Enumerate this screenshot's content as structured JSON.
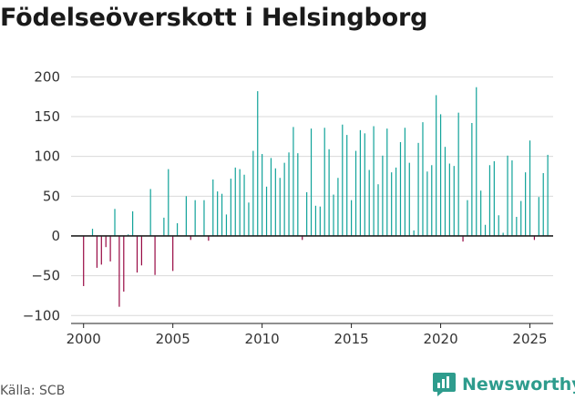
{
  "title": "Födelseöverskott i Helsingborg",
  "source": "Källa: SCB",
  "brand": {
    "name": "Newsworthy",
    "icon": "bar-chart-speech-bubble-icon"
  },
  "colors": {
    "positive": "#12a39a",
    "negative": "#980a44",
    "grid": "#d9d9d9",
    "zero": "#222222",
    "brand": "#2e9c8d"
  },
  "chart_data": {
    "type": "bar",
    "title": "Födelseöverskott i Helsingborg",
    "xlabel": "",
    "ylabel": "",
    "frequency": "monthly",
    "x_start": "2000-01",
    "x_end": "2025-10",
    "xlim": [
      1999.3,
      2026.3
    ],
    "ylim": [
      -110,
      205
    ],
    "y_ticks": [
      -100,
      -50,
      0,
      50,
      100,
      150,
      200
    ],
    "y_tick_labels": [
      "−100",
      "−50",
      "0",
      "50",
      "100",
      "150",
      "200"
    ],
    "x_ticks": [
      2000,
      2005,
      2010,
      2015,
      2020,
      2025
    ],
    "x_tick_labels": [
      "2000",
      "2005",
      "2010",
      "2015",
      "2020",
      "2025"
    ],
    "values": [
      -63,
      0,
      9,
      -40,
      -36,
      -14,
      -32,
      34,
      -89,
      -70,
      2,
      31,
      -46,
      -37,
      0,
      59,
      -49,
      0,
      23,
      84,
      -44,
      16,
      0,
      50,
      -5,
      45,
      0,
      45,
      -6,
      71,
      56,
      53,
      27,
      72,
      86,
      84,
      77,
      42,
      107,
      182,
      103,
      62,
      98,
      85,
      73,
      92,
      105,
      137,
      104,
      -5,
      55,
      135,
      38,
      37,
      136,
      109,
      52,
      73,
      140,
      127,
      45,
      107,
      133,
      129,
      83,
      138,
      65,
      101,
      135,
      80,
      86,
      118,
      136,
      92,
      7,
      117,
      143,
      81,
      89,
      177,
      153,
      112,
      91,
      88,
      155,
      -7,
      45,
      142,
      187,
      57,
      14,
      89,
      94,
      26,
      4,
      101,
      95,
      24,
      44,
      80,
      120,
      -5,
      49,
      79,
      102
    ]
  }
}
